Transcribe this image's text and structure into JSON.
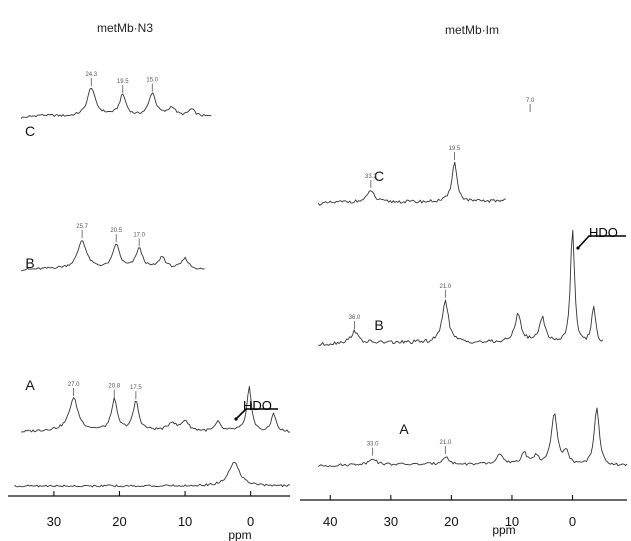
{
  "chart_data": [
    {
      "type": "line",
      "title": "metMb·N3",
      "xlabel": "ppm",
      "x_reversed": true,
      "xlim": [
        37,
        -6
      ],
      "xticks": [
        30,
        20,
        10,
        0
      ],
      "hdo_label": "HDO",
      "hdo_ppm": 0,
      "series": [
        {
          "name": "C",
          "baseline": [
            [
              35,
              0
            ],
            [
              32,
              0.1
            ],
            [
              28,
              0.05
            ],
            [
              22,
              0.1
            ],
            [
              18,
              0.05
            ],
            [
              14,
              0.1
            ],
            [
              10,
              0.05
            ],
            [
              6,
              0.05
            ]
          ],
          "peaks": [
            {
              "ppm": 24.3,
              "height": 1.0,
              "width": 0.7,
              "label": "24.3"
            },
            {
              "ppm": 19.5,
              "height": 0.75,
              "width": 0.6,
              "label": "19.5"
            },
            {
              "ppm": 15.0,
              "height": 0.8,
              "width": 0.6,
              "label": "15.0"
            },
            {
              "ppm": 12.0,
              "height": 0.3,
              "width": 0.6,
              "label": ""
            },
            {
              "ppm": 9.0,
              "height": 0.25,
              "width": 0.6,
              "label": ""
            }
          ]
        },
        {
          "name": "B",
          "baseline": [
            [
              35,
              0
            ],
            [
              30,
              0.05
            ],
            [
              25,
              0.05
            ],
            [
              20,
              0.05
            ],
            [
              15,
              0.05
            ],
            [
              10,
              0.05
            ],
            [
              7,
              0
            ]
          ],
          "peaks": [
            {
              "ppm": 25.7,
              "height": 1.0,
              "width": 0.8,
              "label": "25.7"
            },
            {
              "ppm": 20.5,
              "height": 0.85,
              "width": 0.6,
              "label": "20.5"
            },
            {
              "ppm": 17.0,
              "height": 0.7,
              "width": 0.6,
              "label": "17.0"
            },
            {
              "ppm": 13.5,
              "height": 0.4,
              "width": 0.6,
              "label": ""
            },
            {
              "ppm": 10.0,
              "height": 0.35,
              "width": 0.6,
              "label": ""
            }
          ]
        },
        {
          "name": "A",
          "baseline": [
            [
              35,
              0
            ],
            [
              30,
              0.05
            ],
            [
              25,
              0.05
            ],
            [
              20,
              0.05
            ],
            [
              15,
              0.05
            ],
            [
              10,
              0.05
            ],
            [
              5,
              0
            ],
            [
              2,
              0.05
            ],
            [
              -2,
              0
            ],
            [
              -6,
              0
            ]
          ],
          "peaks": [
            {
              "ppm": 27.0,
              "height": 1.0,
              "width": 0.8,
              "label": "27.0"
            },
            {
              "ppm": 20.8,
              "height": 0.95,
              "width": 0.5,
              "label": "20.8"
            },
            {
              "ppm": 17.5,
              "height": 0.9,
              "width": 0.5,
              "label": "17.5"
            },
            {
              "ppm": 12.0,
              "height": 0.25,
              "width": 0.6,
              "label": ""
            },
            {
              "ppm": 10.0,
              "height": 0.3,
              "width": 0.6,
              "label": ""
            },
            {
              "ppm": 5.0,
              "height": 0.3,
              "width": 0.5,
              "label": ""
            },
            {
              "ppm": 0.2,
              "height": 1.4,
              "width": 0.4,
              "label": ""
            },
            {
              "ppm": -3.5,
              "height": 0.6,
              "width": 0.4,
              "label": ""
            }
          ]
        }
      ],
      "bottom_trace": {
        "baseline": [
          [
            36,
            0
          ],
          [
            10,
            0
          ],
          [
            5,
            0
          ],
          [
            2,
            0
          ],
          [
            -6,
            0
          ]
        ],
        "peaks": [
          {
            "ppm": 2.5,
            "height": 0.9,
            "width": 1.0,
            "label": ""
          }
        ]
      }
    },
    {
      "type": "line",
      "title": "metMb·Im",
      "xlabel": "ppm",
      "x_reversed": true,
      "xlim": [
        45,
        -9
      ],
      "xticks": [
        40,
        30,
        20,
        10,
        0
      ],
      "hdo_label": "HDO",
      "hdo_ppm": 0,
      "series": [
        {
          "name": "C",
          "baseline": [
            [
              42,
              0
            ],
            [
              38,
              0.05
            ],
            [
              34,
              0.05
            ],
            [
              30,
              0.05
            ],
            [
              25,
              0.05
            ],
            [
              20,
              0.05
            ],
            [
              15,
              0.05
            ],
            [
              11,
              0.05
            ]
          ],
          "peaks": [
            {
              "ppm": 33.3,
              "height": 0.3,
              "width": 0.6,
              "label": "33.3"
            },
            {
              "ppm": 19.5,
              "height": 1.0,
              "width": 0.5,
              "label": "19.5"
            },
            {
              "ppm": 9.0,
              "height": 0.5,
              "width": 0.5,
              "label": ""
            },
            {
              "ppm": 7.0,
              "height": 2.2,
              "width": 0.5,
              "label": "7.0"
            }
          ]
        },
        {
          "name": "B",
          "baseline": [
            [
              42,
              0
            ],
            [
              38,
              0.05
            ],
            [
              34,
              0.05
            ],
            [
              30,
              0.05
            ],
            [
              25,
              0.05
            ],
            [
              20,
              0.05
            ],
            [
              15,
              0.05
            ],
            [
              10,
              0.05
            ],
            [
              5,
              0.05
            ],
            [
              0,
              0
            ],
            [
              -5,
              0
            ]
          ],
          "peaks": [
            {
              "ppm": 36.0,
              "height": 0.25,
              "width": 0.6,
              "label": "36.0"
            },
            {
              "ppm": 21.0,
              "height": 0.9,
              "width": 0.6,
              "label": "21.0"
            },
            {
              "ppm": 9.0,
              "height": 0.6,
              "width": 0.6,
              "label": ""
            },
            {
              "ppm": 5.0,
              "height": 0.5,
              "width": 0.6,
              "label": ""
            },
            {
              "ppm": 0.0,
              "height": 2.4,
              "width": 0.4,
              "label": ""
            },
            {
              "ppm": -3.5,
              "height": 0.8,
              "width": 0.4,
              "label": ""
            }
          ]
        },
        {
          "name": "A",
          "baseline": [
            [
              42,
              0
            ],
            [
              35,
              0.05
            ],
            [
              30,
              0.05
            ],
            [
              25,
              0.05
            ],
            [
              20,
              0.05
            ],
            [
              15,
              0.05
            ],
            [
              10,
              0.05
            ],
            [
              5,
              0
            ],
            [
              0,
              0
            ],
            [
              -5,
              0
            ],
            [
              -9,
              0
            ]
          ],
          "peaks": [
            {
              "ppm": 33.0,
              "height": 0.2,
              "width": 0.6,
              "label": "33.0"
            },
            {
              "ppm": 21.0,
              "height": 0.25,
              "width": 0.6,
              "label": "21.0"
            },
            {
              "ppm": 12.0,
              "height": 0.35,
              "width": 0.5,
              "label": ""
            },
            {
              "ppm": 8.0,
              "height": 0.4,
              "width": 0.5,
              "label": ""
            },
            {
              "ppm": 6.0,
              "height": 0.3,
              "width": 0.5,
              "label": ""
            },
            {
              "ppm": 3.0,
              "height": 1.6,
              "width": 0.6,
              "label": ""
            },
            {
              "ppm": 1.0,
              "height": 0.4,
              "width": 0.5,
              "label": ""
            },
            {
              "ppm": -4.0,
              "height": 1.8,
              "width": 0.5,
              "label": ""
            }
          ]
        }
      ]
    }
  ]
}
